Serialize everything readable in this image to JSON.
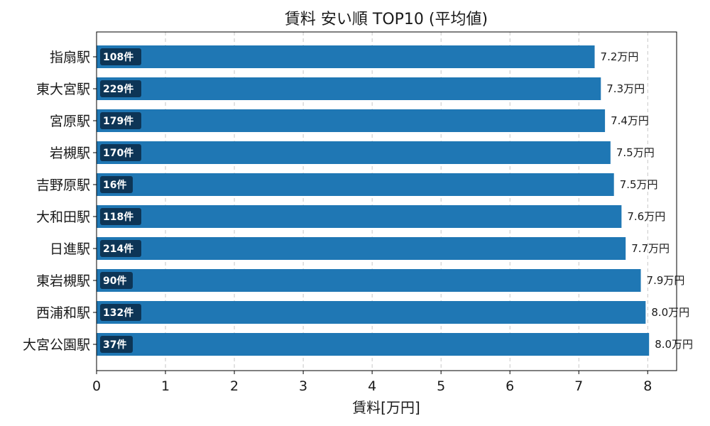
{
  "chart_data": {
    "type": "bar",
    "orientation": "horizontal",
    "title": "賃料 安い順 TOP10 (平均値)",
    "xlabel": "賃料[万円]",
    "ylabel": "",
    "xlim": [
      0,
      8.42
    ],
    "xticks": [
      0,
      1,
      2,
      3,
      4,
      5,
      6,
      7,
      8
    ],
    "grid": "x-dashed",
    "categories": [
      "指扇駅",
      "東大宮駅",
      "宮原駅",
      "岩槻駅",
      "吉野原駅",
      "大和田駅",
      "日進駅",
      "東岩槻駅",
      "西浦和駅",
      "大宮公園駅"
    ],
    "values": [
      7.23,
      7.32,
      7.38,
      7.46,
      7.51,
      7.62,
      7.68,
      7.9,
      7.97,
      8.02
    ],
    "value_labels": [
      "7.2万円",
      "7.3万円",
      "7.4万円",
      "7.5万円",
      "7.5万円",
      "7.6万円",
      "7.7万円",
      "7.9万円",
      "8.0万円",
      "8.0万円"
    ],
    "counts": [
      "108件",
      "229件",
      "179件",
      "170件",
      "16件",
      "118件",
      "214件",
      "90件",
      "132件",
      "37件"
    ],
    "bar_color": "#1f77b4",
    "count_badge_color": "#0d3556"
  }
}
